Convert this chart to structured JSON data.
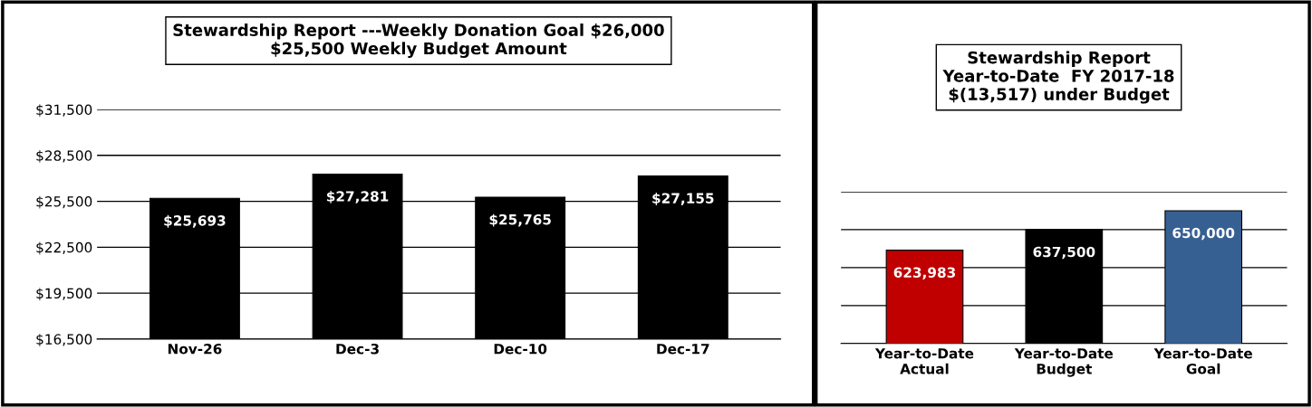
{
  "chart_data": [
    {
      "type": "bar",
      "title": "Stewardship Report ---Weekly Donation Goal $26,000\n$25,500 Weekly Budget Amount",
      "categories": [
        "Nov-26",
        "Dec-3",
        "Dec-10",
        "Dec-17"
      ],
      "values": [
        25693,
        27281,
        25765,
        27155
      ],
      "value_labels": [
        "$25,693",
        "$27,281",
        "$25,765",
        "$27,155"
      ],
      "color": "#000000",
      "ylim": [
        16500,
        31500
      ],
      "yticks": [
        {
          "value": 16500,
          "label": "$16,500"
        },
        {
          "value": 19500,
          "label": "$19,500"
        },
        {
          "value": 22500,
          "label": "$22,500"
        },
        {
          "value": 25500,
          "label": "$25,500"
        },
        {
          "value": 28500,
          "label": "$28,500"
        },
        {
          "value": 31500,
          "label": "$31,500"
        }
      ],
      "grid": "y"
    },
    {
      "type": "bar",
      "title": "Stewardship Report\nYear-to-Date  FY 2017-18\n$(13,517) under Budget",
      "categories": [
        "Year-to-Date\nActual",
        "Year-to-Date\nBudget",
        "Year-to-Date\nGoal"
      ],
      "values": [
        623983,
        637500,
        650000
      ],
      "value_labels": [
        "623,983",
        "637,500",
        "650,000"
      ],
      "colors": [
        "#c00000",
        "#000000",
        "#376092"
      ],
      "ylim": [
        562500,
        662500
      ],
      "yticks": [
        {
          "value": 562500,
          "label": null
        },
        {
          "value": 587500,
          "label": null
        },
        {
          "value": 612500,
          "label": null
        },
        {
          "value": 637500,
          "label": null
        },
        {
          "value": 662500,
          "label": null
        }
      ],
      "grid": "y",
      "tick_labels": "x"
    }
  ]
}
